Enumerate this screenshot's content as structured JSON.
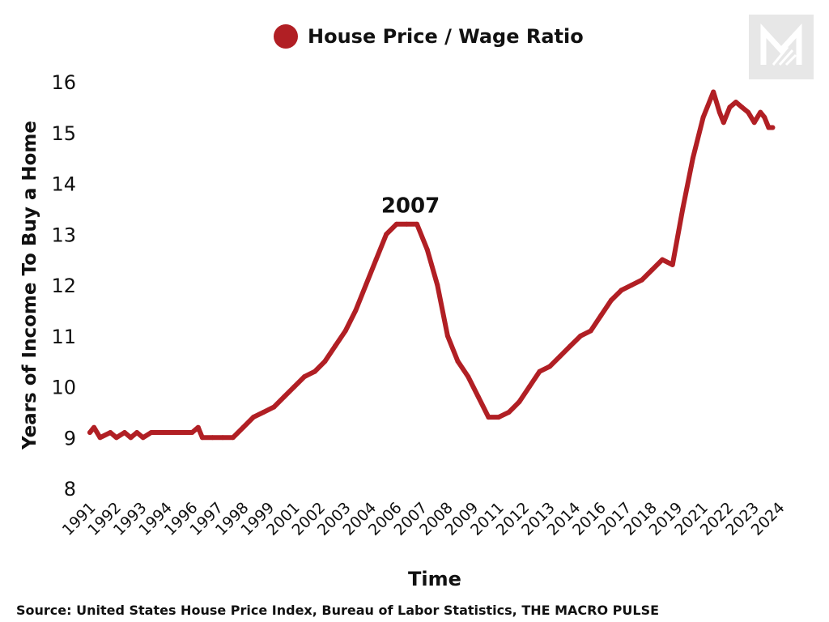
{
  "legend": {
    "label": "House Price / Wage Ratio"
  },
  "source": "Source:  United States House Price Index, Bureau of Labor Statistics, THE MACRO PULSE",
  "colors": {
    "series": "#b11f24",
    "logo_bg": "#e7e7e7",
    "logo_fg": "#ffffff"
  },
  "logo_icon": "macro-pulse-m-logo-icon",
  "chart_data": {
    "type": "line",
    "title": "",
    "xlabel": "Time",
    "ylabel": "Years of Income To Buy a Home",
    "ylim": [
      8,
      16
    ],
    "yticks": [
      8,
      9,
      10,
      11,
      12,
      13,
      14,
      15,
      16
    ],
    "xlim": [
      1991.0,
      2024.7
    ],
    "x_tick_labels": [
      "1991",
      "1992",
      "1993",
      "1994",
      "1996",
      "1997",
      "1998",
      "1999",
      "2001",
      "2002",
      "2003",
      "2004",
      "2006",
      "2007",
      "2008",
      "2009",
      "2011",
      "2012",
      "2013",
      "2014",
      "2016",
      "2017",
      "2018",
      "2019",
      "2021",
      "2022",
      "2023",
      "2024"
    ],
    "grid": false,
    "legend_position": "top-center",
    "annotations": [
      {
        "text": "2007",
        "x": 2007.0,
        "y": 13.2
      }
    ],
    "series": [
      {
        "name": "House Price / Wage Ratio",
        "x": [
          1991.0,
          1991.2,
          1991.5,
          1992.0,
          1992.3,
          1992.7,
          1993.0,
          1993.3,
          1993.6,
          1994.0,
          1994.5,
          1995.0,
          1995.5,
          1996.0,
          1996.3,
          1996.5,
          1997.0,
          1997.5,
          1998.0,
          1998.5,
          1999.0,
          1999.5,
          2000.0,
          2000.5,
          2001.0,
          2001.5,
          2002.0,
          2002.5,
          2003.0,
          2003.5,
          2004.0,
          2004.5,
          2005.0,
          2005.5,
          2006.0,
          2006.5,
          2007.0,
          2007.5,
          2008.0,
          2008.5,
          2009.0,
          2009.5,
          2010.0,
          2010.5,
          2011.0,
          2011.5,
          2012.0,
          2012.5,
          2013.0,
          2013.5,
          2014.0,
          2014.5,
          2015.0,
          2015.5,
          2016.0,
          2016.5,
          2017.0,
          2017.5,
          2018.0,
          2018.5,
          2019.0,
          2019.5,
          2020.0,
          2020.5,
          2021.0,
          2021.5,
          2021.8,
          2022.0,
          2022.3,
          2022.6,
          2022.9,
          2023.2,
          2023.5,
          2023.8,
          2024.0,
          2024.2,
          2024.4
        ],
        "values": [
          9.1,
          9.2,
          9.0,
          9.1,
          9.0,
          9.1,
          9.0,
          9.1,
          9.0,
          9.1,
          9.1,
          9.1,
          9.1,
          9.1,
          9.2,
          9.0,
          9.0,
          9.0,
          9.0,
          9.2,
          9.4,
          9.5,
          9.6,
          9.8,
          10.0,
          10.2,
          10.3,
          10.5,
          10.8,
          11.1,
          11.5,
          12.0,
          12.5,
          13.0,
          13.2,
          13.2,
          13.2,
          12.7,
          12.0,
          11.0,
          10.5,
          10.2,
          9.8,
          9.4,
          9.4,
          9.5,
          9.7,
          10.0,
          10.3,
          10.4,
          10.6,
          10.8,
          11.0,
          11.1,
          11.4,
          11.7,
          11.9,
          12.0,
          12.1,
          12.3,
          12.5,
          12.4,
          13.5,
          14.5,
          15.3,
          15.8,
          15.4,
          15.2,
          15.5,
          15.6,
          15.5,
          15.4,
          15.2,
          15.4,
          15.3,
          15.1,
          15.1
        ]
      }
    ]
  }
}
